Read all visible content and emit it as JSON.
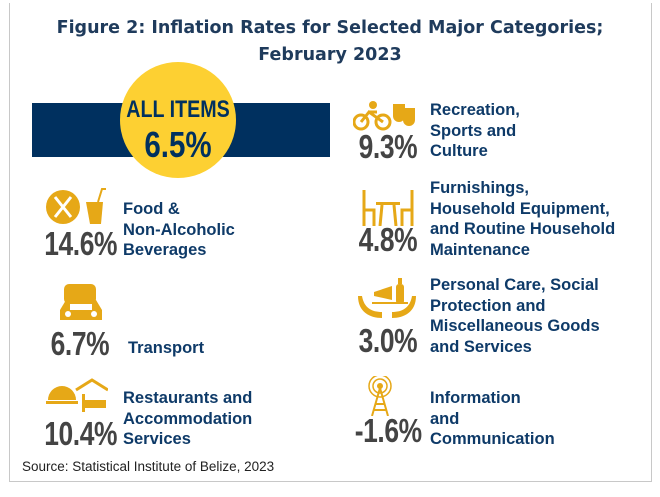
{
  "title": {
    "line1": "Figure 2: Inflation Rates for Selected Major Categories;",
    "line2": "February 2023"
  },
  "all_items": {
    "label": "ALL ITEMS",
    "value": "6.5%"
  },
  "categories": [
    {
      "icon": "food-and-drink-icon",
      "value": "14.6%",
      "label": [
        "Food &",
        "Non-Alcoholic",
        "Beverages"
      ]
    },
    {
      "icon": "car-bus-icon",
      "value": "6.7%",
      "label": [
        "Transport"
      ]
    },
    {
      "icon": "restaurant-hotel-icon",
      "value": "10.4%",
      "label": [
        "Restaurants and",
        "Accommodation",
        "Services"
      ]
    },
    {
      "icon": "bicycle-theatre-masks-icon",
      "value": "9.3%",
      "label": [
        "Recreation,",
        "Sports and",
        "Culture"
      ]
    },
    {
      "icon": "table-chairs-icon",
      "value": "4.8%",
      "label": [
        "Furnishings,",
        "Household Equipment,",
        "and Routine Household",
        "Maintenance"
      ]
    },
    {
      "icon": "hands-personal-care-icon",
      "value": "3.0%",
      "label": [
        "Personal Care, Social",
        "Protection and",
        "Miscellaneous Goods",
        "and Services"
      ]
    },
    {
      "icon": "antenna-tower-icon",
      "value": "-1.6%",
      "label": [
        "Information",
        "and",
        "Communication"
      ]
    }
  ],
  "source": "Source: Statistical Institute of Belize, 2023",
  "colors": {
    "navy": "#00305f",
    "yellow": "#fdd032",
    "gold_icon": "#e6a817",
    "value_gray": "#444444"
  }
}
